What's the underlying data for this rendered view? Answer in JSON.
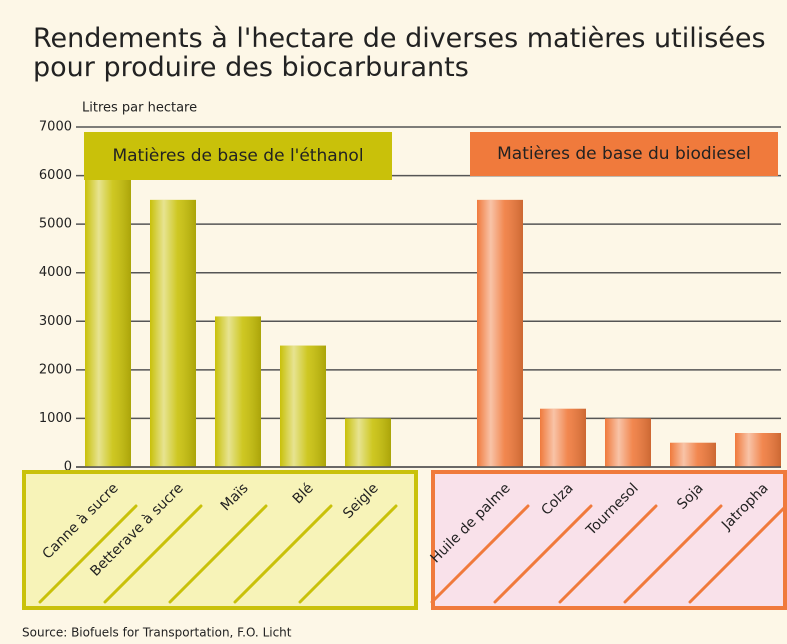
{
  "chart_data": {
    "type": "bar",
    "title": "Rendements à l'hectare de diverses matières utilisées pour produire des biocarburants",
    "y_label": "Litres par hectare",
    "source": "Source: Biofuels for Transportation, F.O. Licht",
    "ylim": [
      0,
      7000
    ],
    "yticks": [
      0,
      1000,
      2000,
      3000,
      4000,
      5000,
      6000,
      7000
    ],
    "grid": true,
    "groups": [
      {
        "name": "Matières de base de l'éthanol",
        "color": "#c9c10a",
        "categories": [
          "Canne à sucre",
          "Betterave à sucre",
          "Maïs",
          "Blé",
          "Seigle"
        ],
        "values": [
          6000,
          5500,
          3100,
          2500,
          1000
        ]
      },
      {
        "name": "Matières de base du biodiesel",
        "color": "#f07a3c",
        "categories": [
          "Huile de palme",
          "Colza",
          "Tournesol",
          "Soja",
          "Jatropha"
        ],
        "values": [
          5500,
          1200,
          1000,
          500,
          700
        ]
      }
    ]
  }
}
